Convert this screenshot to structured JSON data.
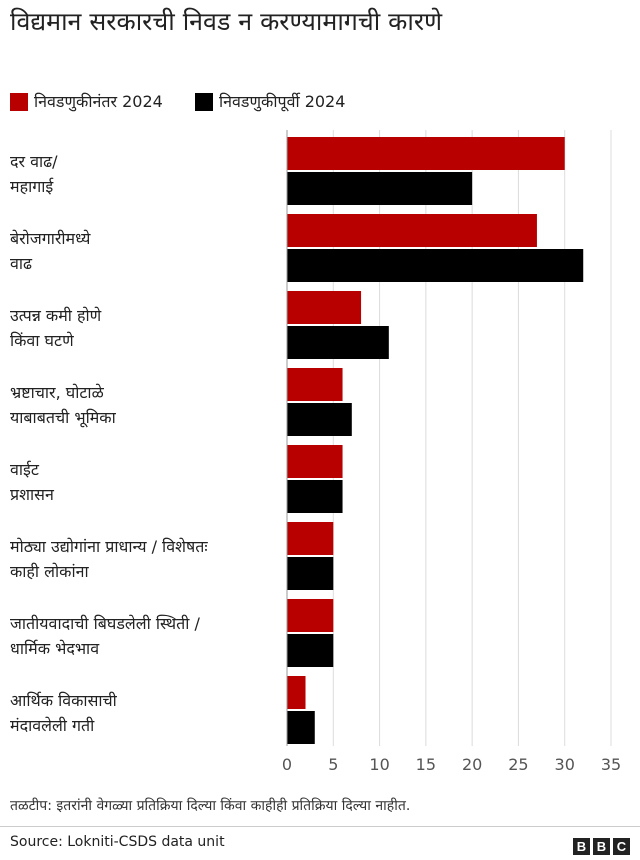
{
  "chart_data": {
    "type": "bar",
    "orientation": "horizontal",
    "title": "विद्यमान सरकारची निवड न करण्यामागची कारणे",
    "categories": [
      [
        "दर वाढ/",
        "महागाई"
      ],
      [
        "बेरोजगारीमध्ये",
        "वाढ"
      ],
      [
        "उत्पन्न कमी होणे",
        "किंवा घटणे"
      ],
      [
        "भ्रष्टाचार, घोटाळे",
        "याबाबतची भूमिका"
      ],
      [
        "वाईट",
        "प्रशासन"
      ],
      [
        "मोठ्या उद्योगांना प्राधान्य / विशेषतः",
        "काही लोकांना"
      ],
      [
        "जातीयवादाची बिघडलेली स्थिती /",
        "धार्मिक भेदभाव"
      ],
      [
        "आर्थिक विकासाची",
        "मंदावलेली गती"
      ]
    ],
    "series": [
      {
        "name": "निवडणुकीनंतर 2024",
        "color": "#b80000",
        "values": [
          30,
          27,
          8,
          6,
          6,
          5,
          5,
          2
        ]
      },
      {
        "name": "निवडणुकीपूर्वी 2024",
        "color": "#000000",
        "values": [
          20,
          32,
          11,
          7,
          6,
          5,
          5,
          3
        ]
      }
    ],
    "xlim": [
      0,
      35
    ],
    "xticks": [
      0,
      5,
      10,
      15,
      20,
      25,
      30,
      35
    ],
    "grid": true,
    "legend_position": "top-left"
  },
  "footnote": "तळटीप: इतरांनी वेगळ्या प्रतिक्रिया दिल्या किंवा काहीही प्रतिक्रिया दिल्या नाहीत.",
  "source": "Source: Lokniti-CSDS data unit",
  "logo": [
    "B",
    "B",
    "C"
  ]
}
